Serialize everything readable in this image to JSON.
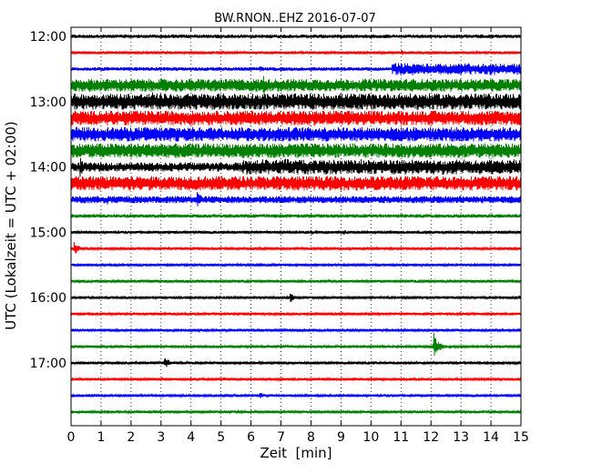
{
  "chart_data": {
    "type": "line",
    "title": "BW.RNON..EHZ 2016-07-07",
    "xlabel": "Zeit  [min]",
    "ylabel": "UTC (Lokalzeit = UTC + 02:00)",
    "xlim": [
      0,
      15
    ],
    "x_ticks": [
      0,
      1,
      2,
      3,
      4,
      5,
      6,
      7,
      8,
      9,
      10,
      11,
      12,
      13,
      14,
      15
    ],
    "y_tick_labels": [
      "12:00",
      "13:00",
      "14:00",
      "15:00",
      "16:00",
      "17:00"
    ],
    "grid": "vertical dotted at each minute",
    "colors": [
      "#000000",
      "#ff0000",
      "#0000ff",
      "#008000"
    ],
    "series": [
      {
        "time": "12:00",
        "color": "#000000",
        "amplitude": 2,
        "events": [
          {
            "t": 3.0,
            "amp": 3
          },
          {
            "t": 14.0,
            "amp": 3
          }
        ]
      },
      {
        "time": "12:15",
        "color": "#ff0000",
        "amplitude": 1.5,
        "events": [
          {
            "t": 11.0,
            "amp": 4
          }
        ]
      },
      {
        "time": "12:30",
        "color": "#0000ff",
        "amplitude": 2,
        "events": [
          {
            "t": 6.3,
            "amp": 4
          }
        ],
        "segments": [
          {
            "from": 10.7,
            "to": 15,
            "amp": 7
          }
        ]
      },
      {
        "time": "12:45",
        "color": "#008000",
        "amplitude": 7,
        "events": [
          {
            "t": 6.4,
            "amp": 14
          }
        ]
      },
      {
        "time": "13:00",
        "color": "#000000",
        "amplitude": 9,
        "events": [
          {
            "t": 2.7,
            "amp": 12
          }
        ]
      },
      {
        "time": "13:15",
        "color": "#ff0000",
        "amplitude": 8,
        "events": []
      },
      {
        "time": "13:30",
        "color": "#0000ff",
        "amplitude": 8,
        "events": []
      },
      {
        "time": "13:45",
        "color": "#008000",
        "amplitude": 8,
        "events": []
      },
      {
        "time": "14:00",
        "color": "#000000",
        "amplitude": 5,
        "events": [
          {
            "t": 0.3,
            "amp": 12
          }
        ],
        "segments": [
          {
            "from": 5.7,
            "to": 15,
            "amp": 9
          }
        ]
      },
      {
        "time": "14:15",
        "color": "#ff0000",
        "amplitude": 8,
        "events": []
      },
      {
        "time": "14:30",
        "color": "#0000ff",
        "amplitude": 4,
        "events": [
          {
            "t": 4.2,
            "amp": 11
          },
          {
            "t": 1.2,
            "amp": 6
          }
        ]
      },
      {
        "time": "14:45",
        "color": "#008000",
        "amplitude": 2,
        "events": []
      },
      {
        "time": "15:00",
        "color": "#000000",
        "amplitude": 1.5,
        "events": [
          {
            "t": 8.0,
            "amp": 3
          },
          {
            "t": 9.1,
            "amp": 3
          }
        ]
      },
      {
        "time": "15:15",
        "color": "#ff0000",
        "amplitude": 1.5,
        "events": [
          {
            "t": 0.1,
            "amp": 8
          }
        ]
      },
      {
        "time": "15:30",
        "color": "#0000ff",
        "amplitude": 1.5,
        "events": []
      },
      {
        "time": "15:45",
        "color": "#008000",
        "amplitude": 1.5,
        "events": []
      },
      {
        "time": "16:00",
        "color": "#000000",
        "amplitude": 1.5,
        "events": [
          {
            "t": 7.3,
            "amp": 6
          }
        ]
      },
      {
        "time": "16:15",
        "color": "#ff0000",
        "amplitude": 1.5,
        "events": []
      },
      {
        "time": "16:30",
        "color": "#0000ff",
        "amplitude": 1.5,
        "events": []
      },
      {
        "time": "16:45",
        "color": "#008000",
        "amplitude": 1.5,
        "events": [
          {
            "t": 12.1,
            "amp": 16
          }
        ]
      },
      {
        "time": "17:00",
        "color": "#000000",
        "amplitude": 1.5,
        "events": [
          {
            "t": 3.1,
            "amp": 8
          }
        ]
      },
      {
        "time": "17:15",
        "color": "#ff0000",
        "amplitude": 1.5,
        "events": []
      },
      {
        "time": "17:30",
        "color": "#0000ff",
        "amplitude": 1.5,
        "events": [
          {
            "t": 6.3,
            "amp": 4
          }
        ]
      },
      {
        "time": "17:45",
        "color": "#008000",
        "amplitude": 1.5,
        "events": []
      }
    ]
  }
}
